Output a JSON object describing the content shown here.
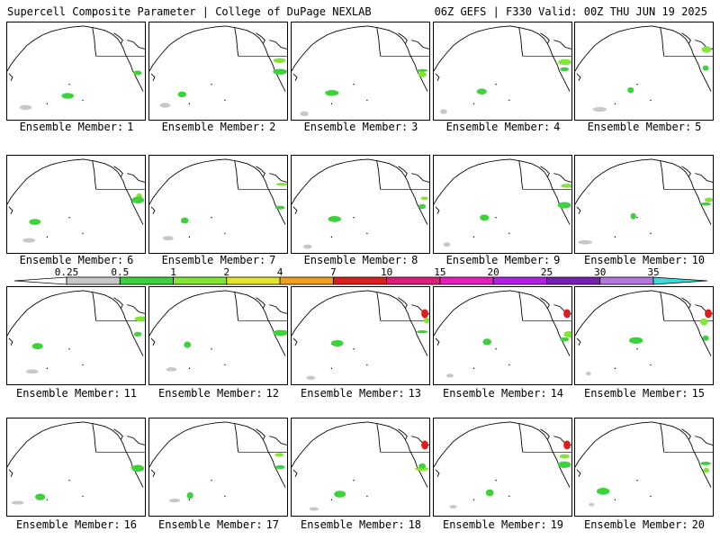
{
  "header": {
    "left_title": "Supercell Composite Parameter | College of DuPage NEXLAB",
    "right_title": "06Z GEFS | F330 Valid: 00Z THU JUN 19 2025"
  },
  "caption_prefix": "Ensemble Member:",
  "members": [
    1,
    2,
    3,
    4,
    5,
    6,
    7,
    8,
    9,
    10,
    11,
    12,
    13,
    14,
    15,
    16,
    17,
    18,
    19,
    20
  ],
  "colorbar": {
    "labels": [
      "0.25",
      "0.5",
      "1",
      "2",
      "4",
      "7",
      "10",
      "15",
      "20",
      "25",
      "30",
      "35"
    ],
    "colors": [
      "#c8c8c8",
      "#3cd23c",
      "#82e632",
      "#e6e628",
      "#f0a01e",
      "#dc1e1e",
      "#dc1e78",
      "#e61ebe",
      "#b41ee6",
      "#781eb4",
      "#b478dc",
      "#3cdcdc"
    ]
  }
}
